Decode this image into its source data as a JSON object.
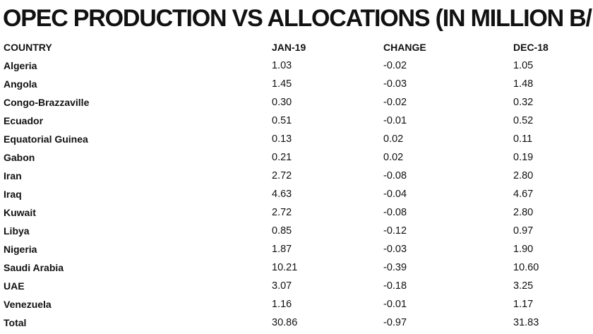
{
  "title": "OPEC PRODUCTION VS ALLOCATIONS (IN MILLION B/D)",
  "chart_data": {
    "type": "table",
    "title": "OPEC PRODUCTION VS ALLOCATIONS (IN MILLION B/D)",
    "columns": [
      "COUNTRY",
      "JAN-19",
      "CHANGE",
      "DEC-18"
    ],
    "rows": [
      [
        "Algeria",
        "1.03",
        "-0.02",
        "1.05"
      ],
      [
        "Angola",
        "1.45",
        "-0.03",
        "1.48"
      ],
      [
        "Congo-Brazzaville",
        "0.30",
        "-0.02",
        "0.32"
      ],
      [
        "Ecuador",
        "0.51",
        "-0.01",
        "0.52"
      ],
      [
        "Equatorial Guinea",
        "0.13",
        "0.02",
        "0.11"
      ],
      [
        "Gabon",
        "0.21",
        "0.02",
        "0.19"
      ],
      [
        "Iran",
        "2.72",
        "-0.08",
        "2.80"
      ],
      [
        "Iraq",
        "4.63",
        "-0.04",
        "4.67"
      ],
      [
        "Kuwait",
        "2.72",
        "-0.08",
        "2.80"
      ],
      [
        "Libya",
        "0.85",
        "-0.12",
        "0.97"
      ],
      [
        "Nigeria",
        "1.87",
        "-0.03",
        "1.90"
      ],
      [
        "Saudi Arabia",
        "10.21",
        "-0.39",
        "10.60"
      ],
      [
        "UAE",
        "3.07",
        "-0.18",
        "3.25"
      ],
      [
        "Venezuela",
        "1.16",
        "-0.01",
        "1.17"
      ],
      [
        "Total",
        "30.86",
        "-0.97",
        "31.83"
      ]
    ]
  }
}
